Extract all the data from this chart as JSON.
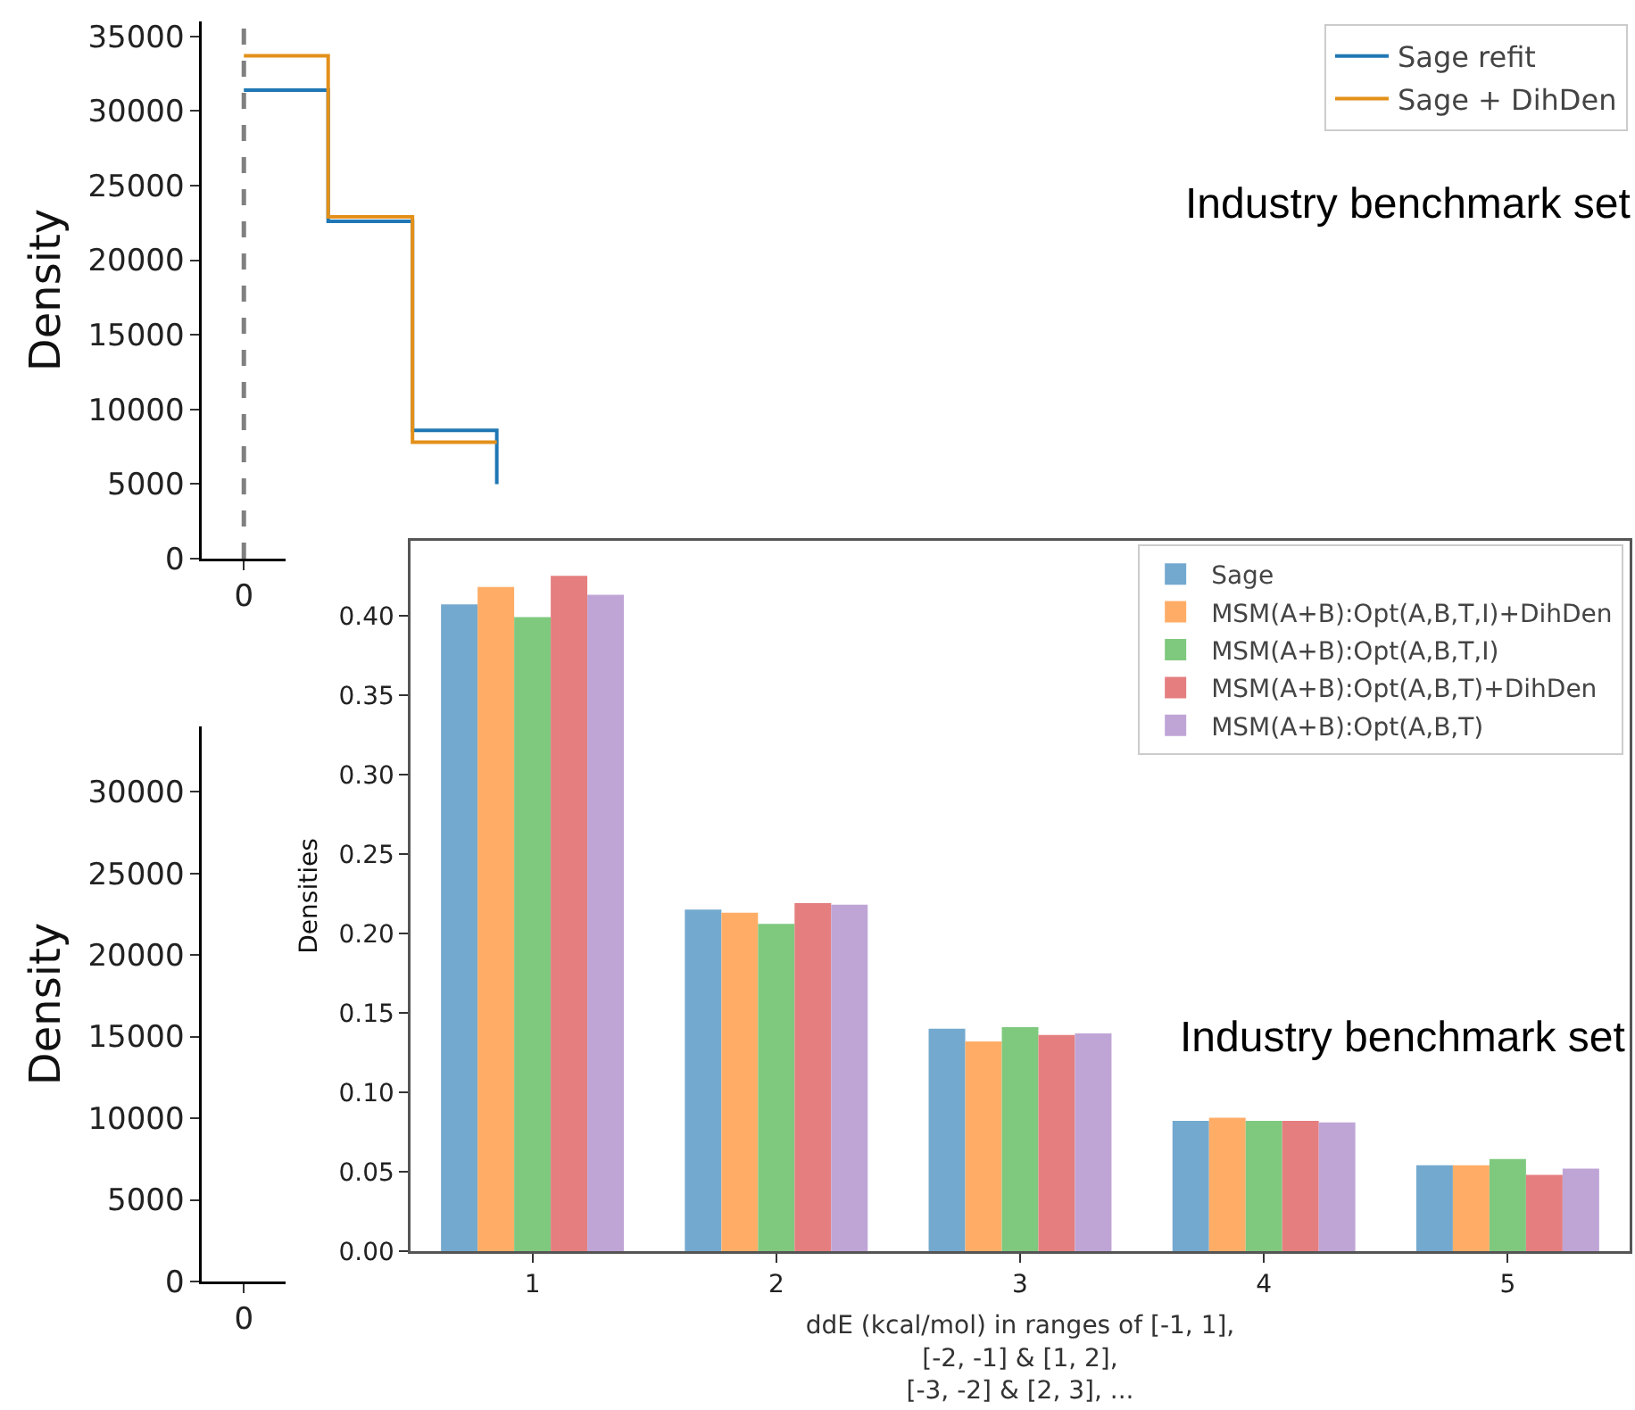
{
  "chart_data": [
    {
      "type": "step",
      "ylabel": "Density",
      "categories": [
        "0",
        null,
        null,
        null,
        null,
        null,
        null,
        null,
        null,
        null,
        null,
        null,
        null,
        null,
        null,
        null,
        null
      ],
      "ylim": [
        0,
        36000
      ],
      "yticks": [
        0,
        5000,
        10000,
        15000,
        20000,
        25000,
        30000,
        35000
      ],
      "grid": false,
      "legend": "top right",
      "annotations": [
        "Industry benchmark set"
      ],
      "ref_lines": [
        {
          "axis": "x",
          "value": "0",
          "color": "#808080",
          "line_style": "dashed"
        }
      ],
      "series": [
        {
          "name": "Sage refit",
          "color": "#1f77b4",
          "values": [
            31400,
            22600,
            8600,
            5000,
            null,
            null,
            null,
            null,
            null,
            null,
            null,
            null,
            null,
            null,
            null,
            null,
            null
          ]
        },
        {
          "name": "Sage + DihDen",
          "color": "#e3901a",
          "values": [
            33700,
            22900,
            7800,
            7800,
            null,
            null,
            null,
            null,
            null,
            null,
            null,
            null,
            null,
            null,
            null,
            null,
            null
          ]
        }
      ]
    },
    {
      "type": "step",
      "ylabel": "Density",
      "categories": [
        "0",
        null,
        null,
        null,
        null,
        null,
        null,
        null,
        null,
        null,
        null,
        null,
        null,
        null,
        null,
        null,
        null
      ],
      "ylim": [
        0,
        34000
      ],
      "yticks": [
        0,
        5000,
        10000,
        15000,
        20000,
        25000,
        30000
      ],
      "series": [
        {
          "color": "#1f77b4",
          "values": [
            null,
            null,
            null,
            null,
            null,
            null,
            null,
            null,
            null,
            null,
            null,
            null,
            null,
            null,
            null,
            null,
            null
          ]
        }
      ]
    },
    {
      "type": "bar",
      "xlabel": "ddE (kcal/mol) in ranges of [-1, 1],\n[-2, -1] & [1, 2],\n[-3, -2] & [2, 3], ...",
      "ylabel": "Densities",
      "categories": [
        "1",
        "2",
        "3",
        "4",
        "5"
      ],
      "ylim": [
        0,
        0.447
      ],
      "yticks": [
        {
          "value": 0,
          "label": "0.00"
        },
        {
          "value": 0.05,
          "label": "0.05"
        },
        {
          "value": 0.1,
          "label": "0.10"
        },
        {
          "value": 0.15,
          "label": "0.15"
        },
        {
          "value": 0.2,
          "label": "0.20"
        },
        {
          "value": 0.25,
          "label": "0.25"
        },
        {
          "value": 0.3,
          "label": "0.30"
        },
        {
          "value": 0.35,
          "label": "0.35"
        },
        {
          "value": 0.4,
          "label": "0.40"
        }
      ],
      "grid": false,
      "legend": "top right",
      "annotations": [
        "Industry benchmark set"
      ],
      "series": [
        {
          "name": "Sage",
          "color": "#73a9cf",
          "values": [
            0.407,
            0.215,
            0.14,
            0.082,
            0.054
          ]
        },
        {
          "name": "MSM(A+B):Opt(A,B,T,I)+DihDen",
          "color": "#ffad66",
          "values": [
            0.418,
            0.213,
            0.132,
            0.084,
            0.054
          ]
        },
        {
          "name": "MSM(A+B):Opt(A,B,T,I)",
          "color": "#7fc97f",
          "values": [
            0.399,
            0.206,
            0.141,
            0.082,
            0.058
          ]
        },
        {
          "name": "MSM(A+B):Opt(A,B,T)+DihDen",
          "color": "#e57e7f",
          "values": [
            0.425,
            0.219,
            0.136,
            0.082,
            0.048
          ]
        },
        {
          "name": "MSM(A+B):Opt(A,B,T)",
          "color": "#bfa5d6",
          "values": [
            0.413,
            0.218,
            0.137,
            0.081,
            0.052
          ]
        }
      ]
    }
  ]
}
